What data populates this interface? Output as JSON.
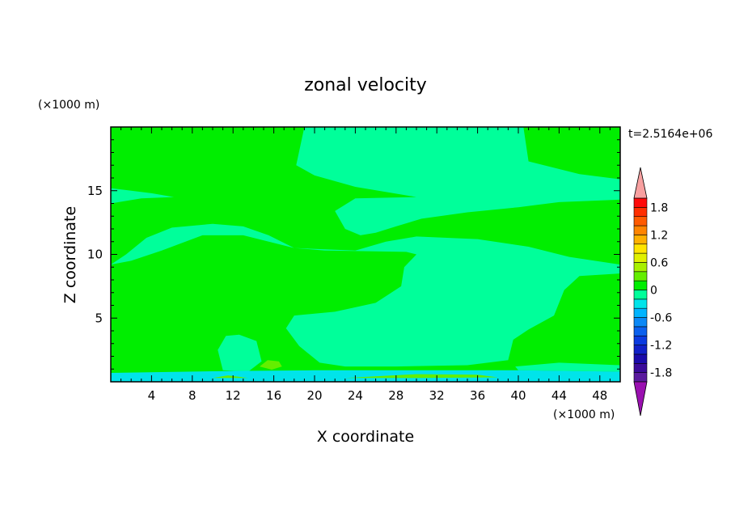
{
  "chart_data": {
    "type": "contour",
    "title": "zonal velocity",
    "time_label": "t=2.5164e+06",
    "xlabel": "X coordinate",
    "ylabel": "Z coordinate",
    "x_unit": "(×1000 m)",
    "y_unit": "(×1000 m)",
    "xlim": [
      0,
      50
    ],
    "ylim": [
      0,
      20
    ],
    "x_ticks": [
      4,
      8,
      12,
      16,
      20,
      24,
      28,
      32,
      36,
      40,
      44,
      48
    ],
    "x_tick_labels": [
      "4",
      "8",
      "12",
      "16",
      "20",
      "24",
      "28",
      "32",
      "36",
      "40",
      "44",
      "48"
    ],
    "y_ticks": [
      5,
      10,
      15
    ],
    "y_tick_labels": [
      "5",
      "10",
      "15"
    ],
    "colorbar": {
      "levels": [
        -2.0,
        -1.8,
        -1.6,
        -1.4,
        -1.2,
        -1.0,
        -0.8,
        -0.6,
        -0.4,
        -0.2,
        0.0,
        0.2,
        0.4,
        0.6,
        0.8,
        1.0,
        1.2,
        1.4,
        1.6,
        1.8,
        2.0
      ],
      "colors": [
        "#5a1a9e",
        "#3a0a9a",
        "#1a0aaa",
        "#1020c8",
        "#0a3ae0",
        "#0a60ee",
        "#0a88f6",
        "#00b4ff",
        "#00e4ea",
        "#00ff9a",
        "#00ee00",
        "#64ee00",
        "#a8f000",
        "#e0f000",
        "#ffe400",
        "#ffb000",
        "#ff8400",
        "#ff5a00",
        "#ff2e00",
        "#ff0a0a"
      ],
      "under_color": "#9a10b0",
      "over_color": "#f8a0a0",
      "tick_labels": [
        "1.8",
        "1.2",
        "0.6",
        "0",
        "-0.6",
        "-1.2",
        "-1.8"
      ],
      "tick_values": [
        1.8,
        1.2,
        0.6,
        0.0,
        -0.6,
        -1.2,
        -1.8
      ]
    },
    "field_colors": {
      "negative_small": "#00ff9a",
      "positive_small": "#00ee00",
      "positive_medium": "#64ee00",
      "near_surface": "#00e4ea"
    },
    "regions": {
      "negative_zones": [
        [
          [
            0,
            20
          ],
          [
            19,
            20
          ],
          [
            18.2,
            17
          ],
          [
            20,
            16.2
          ],
          [
            24,
            15.3
          ],
          [
            30,
            14.5
          ],
          [
            24,
            14.4
          ],
          [
            22,
            13.4
          ],
          [
            23,
            12
          ],
          [
            24.5,
            11.5
          ],
          [
            26,
            11.7
          ],
          [
            28,
            12.2
          ],
          [
            30.5,
            12.8
          ],
          [
            35,
            13.3
          ],
          [
            40,
            13.7
          ],
          [
            44,
            14.1
          ],
          [
            50,
            14.3
          ],
          [
            50,
            15.9
          ],
          [
            46,
            16.3
          ],
          [
            41,
            17.3
          ],
          [
            40.5,
            20
          ],
          [
            0,
            20
          ]
        ],
        [
          [
            0,
            14
          ],
          [
            3,
            14.4
          ],
          [
            6.2,
            14.5
          ],
          [
            4,
            14.8
          ],
          [
            0,
            15.2
          ],
          [
            0,
            14
          ]
        ],
        [
          [
            0,
            9.2
          ],
          [
            1.5,
            10
          ],
          [
            3.5,
            11.3
          ],
          [
            6,
            12.1
          ],
          [
            10,
            12.4
          ],
          [
            13,
            12.2
          ],
          [
            15.5,
            11.5
          ],
          [
            18,
            10.5
          ],
          [
            24,
            10.3
          ],
          [
            27,
            11
          ],
          [
            30,
            11.4
          ],
          [
            36,
            11.2
          ],
          [
            41,
            10.6
          ],
          [
            45,
            9.8
          ],
          [
            50,
            9.2
          ],
          [
            50,
            8.5
          ],
          [
            46,
            8.3
          ],
          [
            44.5,
            7.2
          ],
          [
            43.5,
            5.2
          ],
          [
            41,
            4.1
          ],
          [
            39.5,
            3.3
          ],
          [
            39,
            1.7
          ],
          [
            35,
            1.3
          ],
          [
            28,
            1.2
          ],
          [
            23,
            1.2
          ],
          [
            20.5,
            1.5
          ],
          [
            18.5,
            2.8
          ],
          [
            17.2,
            4.2
          ],
          [
            18,
            5.2
          ],
          [
            22,
            5.5
          ],
          [
            26,
            6.2
          ],
          [
            28.5,
            7.5
          ],
          [
            28.8,
            9
          ],
          [
            30,
            10
          ],
          [
            29,
            10.2
          ],
          [
            21,
            10.3
          ],
          [
            18,
            10.5
          ],
          [
            13,
            11.5
          ],
          [
            9,
            11.5
          ],
          [
            5,
            10.3
          ],
          [
            2,
            9.5
          ],
          [
            0,
            9.2
          ]
        ],
        [
          [
            11,
            0.9
          ],
          [
            10.5,
            2.5
          ],
          [
            11.3,
            3.6
          ],
          [
            12.6,
            3.7
          ],
          [
            14.3,
            3.2
          ],
          [
            14.8,
            1.6
          ],
          [
            13.5,
            0.8
          ],
          [
            11,
            0.9
          ]
        ],
        [
          [
            39.7,
            1.2
          ],
          [
            44,
            1.5
          ],
          [
            50,
            1.3
          ],
          [
            50,
            0.8
          ],
          [
            40,
            0.9
          ],
          [
            39.7,
            1.2
          ]
        ]
      ],
      "positive_medium_patches": [
        [
          [
            14.6,
            1.2
          ],
          [
            15.4,
            1.7
          ],
          [
            16.5,
            1.6
          ],
          [
            16.8,
            1.2
          ],
          [
            15.8,
            0.95
          ],
          [
            14.6,
            1.2
          ]
        ],
        [
          [
            23,
            0.3
          ],
          [
            30,
            0.6
          ],
          [
            36,
            0.55
          ],
          [
            38,
            0.35
          ],
          [
            30,
            0.3
          ],
          [
            23,
            0.3
          ]
        ],
        [
          [
            10,
            0.3
          ],
          [
            11.5,
            0.5
          ],
          [
            13.5,
            0.3
          ],
          [
            10,
            0.3
          ]
        ]
      ],
      "near_surface_band": [
        [
          0,
          0
        ],
        [
          50,
          0
        ],
        [
          50,
          0.8
        ],
        [
          40,
          0.9
        ],
        [
          20,
          0.9
        ],
        [
          12,
          0.85
        ],
        [
          0,
          0.7
        ],
        [
          0,
          0
        ]
      ]
    }
  }
}
